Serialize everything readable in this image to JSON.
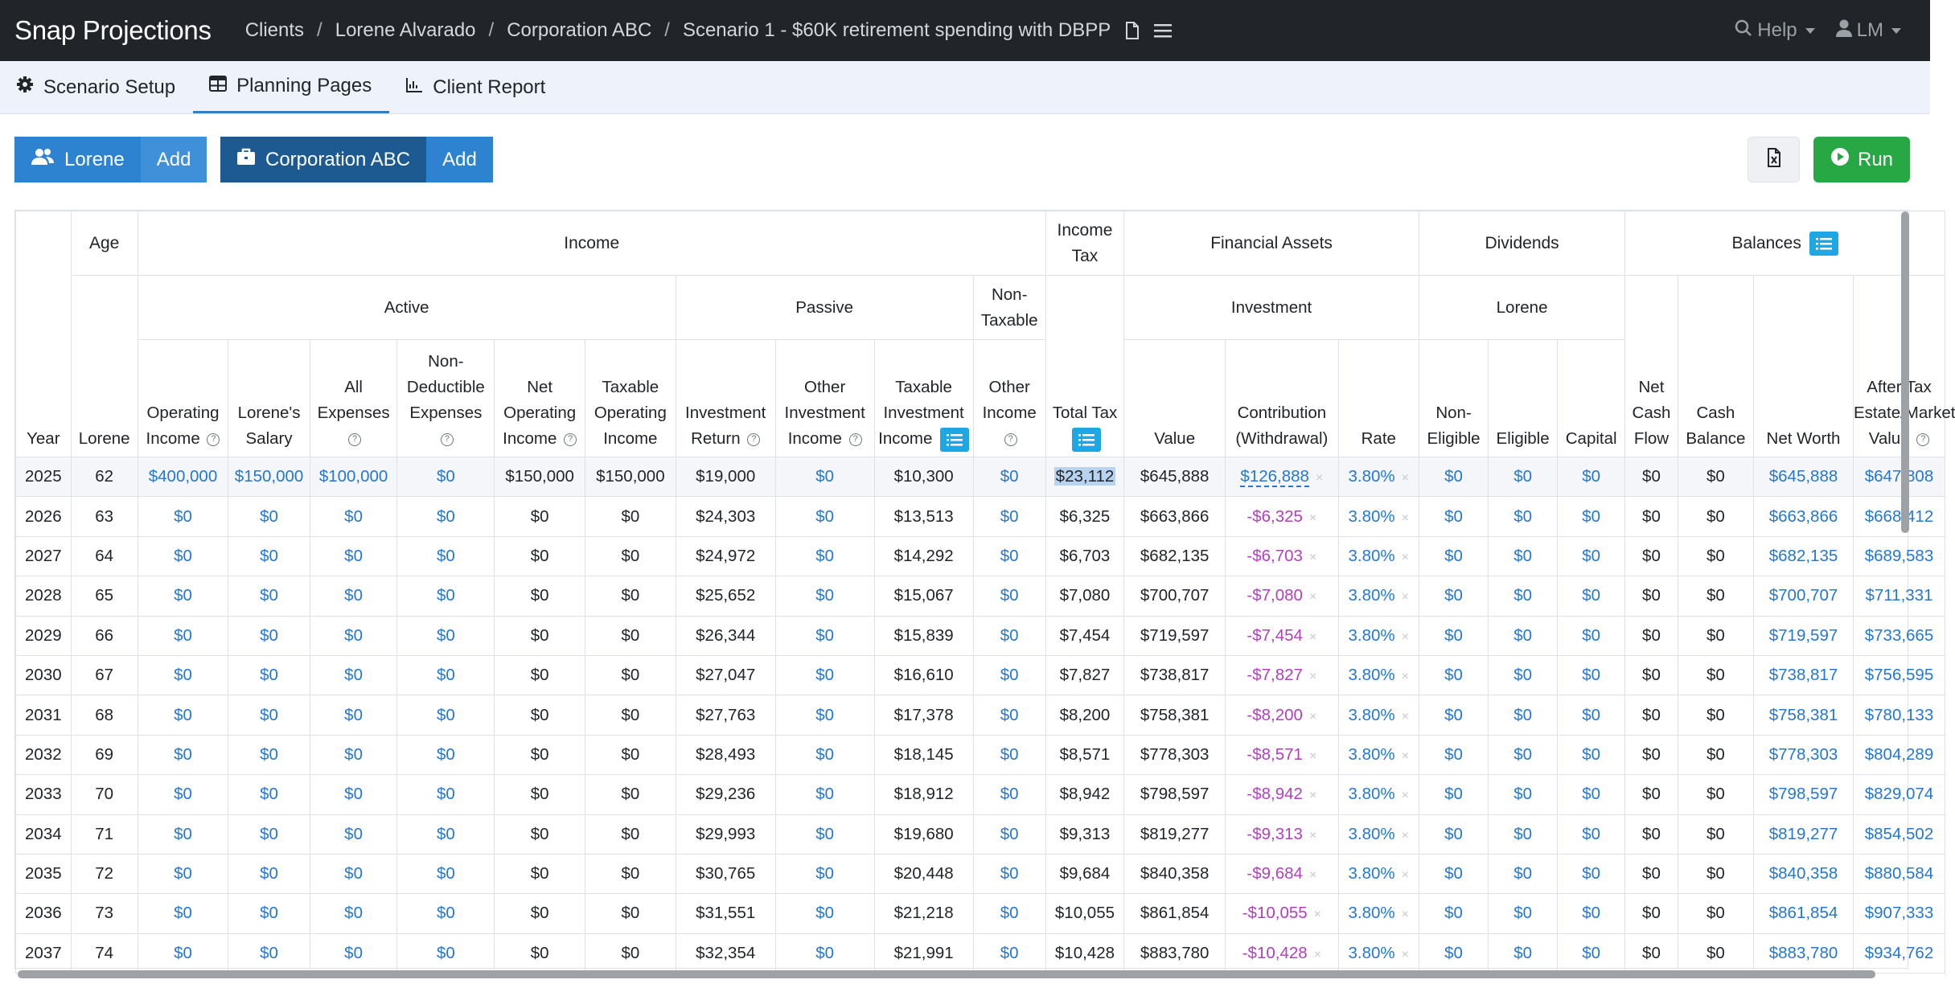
{
  "app": {
    "brand": "Snap Projections"
  },
  "breadcrumb": [
    "Clients",
    "Lorene Alvarado",
    "Corporation ABC",
    "Scenario 1 - $60K retirement spending with DBPP"
  ],
  "nav": {
    "help": "Help",
    "user": "LM"
  },
  "tabs": [
    {
      "label": "Scenario Setup",
      "icon": "gear-icon"
    },
    {
      "label": "Planning Pages",
      "icon": "table-icon"
    },
    {
      "label": "Client Report",
      "icon": "chart-icon"
    }
  ],
  "entities": {
    "person": {
      "label": "Lorene",
      "add": "Add",
      "color": "#2d83d0"
    },
    "corp": {
      "label": "Corporation ABC",
      "add": "Add",
      "color": "#1c5a91"
    }
  },
  "actions": {
    "run": "Run"
  },
  "table": {
    "groups": {
      "year": "Year",
      "age": "Age",
      "income": "Income",
      "income_tax": "Income Tax",
      "financial_assets": "Financial Assets",
      "dividends": "Dividends",
      "balances": "Balances",
      "age_sub": "Lorene",
      "active": "Active",
      "passive": "Passive",
      "non_taxable": "Non-Taxable",
      "investment": "Investment",
      "div_person": "Lorene"
    },
    "columns": [
      "Operating Income",
      "Lorene's Salary",
      "All Expenses",
      "Non-Deductible Expenses",
      "Net Operating Income",
      "Taxable Operating Income",
      "Investment Return",
      "Other Investment Income",
      "Taxable Investment Income",
      "Other Income",
      "Total Tax",
      "Value",
      "Contribution (Withdrawal)",
      "Rate",
      "Non-Eligible",
      "Eligible",
      "Capital",
      "Net Cash Flow",
      "Cash Balance",
      "Net Worth",
      "After Tax Estate/Market Value"
    ],
    "rows": [
      [
        "2025",
        "62",
        "$400,000",
        "$150,000",
        "$100,000",
        "$0",
        "$150,000",
        "$150,000",
        "$19,000",
        "$0",
        "$10,300",
        "$0",
        "$23,112",
        "$645,888",
        "$126,888",
        "3.80%",
        "$0",
        "$0",
        "$0",
        "$0",
        "$0",
        "$645,888",
        "$647,808"
      ],
      [
        "2026",
        "63",
        "$0",
        "$0",
        "$0",
        "$0",
        "$0",
        "$0",
        "$24,303",
        "$0",
        "$13,513",
        "$0",
        "$6,325",
        "$663,866",
        "-$6,325",
        "3.80%",
        "$0",
        "$0",
        "$0",
        "$0",
        "$0",
        "$663,866",
        "$668,412"
      ],
      [
        "2027",
        "64",
        "$0",
        "$0",
        "$0",
        "$0",
        "$0",
        "$0",
        "$24,972",
        "$0",
        "$14,292",
        "$0",
        "$6,703",
        "$682,135",
        "-$6,703",
        "3.80%",
        "$0",
        "$0",
        "$0",
        "$0",
        "$0",
        "$682,135",
        "$689,583"
      ],
      [
        "2028",
        "65",
        "$0",
        "$0",
        "$0",
        "$0",
        "$0",
        "$0",
        "$25,652",
        "$0",
        "$15,067",
        "$0",
        "$7,080",
        "$700,707",
        "-$7,080",
        "3.80%",
        "$0",
        "$0",
        "$0",
        "$0",
        "$0",
        "$700,707",
        "$711,331"
      ],
      [
        "2029",
        "66",
        "$0",
        "$0",
        "$0",
        "$0",
        "$0",
        "$0",
        "$26,344",
        "$0",
        "$15,839",
        "$0",
        "$7,454",
        "$719,597",
        "-$7,454",
        "3.80%",
        "$0",
        "$0",
        "$0",
        "$0",
        "$0",
        "$719,597",
        "$733,665"
      ],
      [
        "2030",
        "67",
        "$0",
        "$0",
        "$0",
        "$0",
        "$0",
        "$0",
        "$27,047",
        "$0",
        "$16,610",
        "$0",
        "$7,827",
        "$738,817",
        "-$7,827",
        "3.80%",
        "$0",
        "$0",
        "$0",
        "$0",
        "$0",
        "$738,817",
        "$756,595"
      ],
      [
        "2031",
        "68",
        "$0",
        "$0",
        "$0",
        "$0",
        "$0",
        "$0",
        "$27,763",
        "$0",
        "$17,378",
        "$0",
        "$8,200",
        "$758,381",
        "-$8,200",
        "3.80%",
        "$0",
        "$0",
        "$0",
        "$0",
        "$0",
        "$758,381",
        "$780,133"
      ],
      [
        "2032",
        "69",
        "$0",
        "$0",
        "$0",
        "$0",
        "$0",
        "$0",
        "$28,493",
        "$0",
        "$18,145",
        "$0",
        "$8,571",
        "$778,303",
        "-$8,571",
        "3.80%",
        "$0",
        "$0",
        "$0",
        "$0",
        "$0",
        "$778,303",
        "$804,289"
      ],
      [
        "2033",
        "70",
        "$0",
        "$0",
        "$0",
        "$0",
        "$0",
        "$0",
        "$29,236",
        "$0",
        "$18,912",
        "$0",
        "$8,942",
        "$798,597",
        "-$8,942",
        "3.80%",
        "$0",
        "$0",
        "$0",
        "$0",
        "$0",
        "$798,597",
        "$829,074"
      ],
      [
        "2034",
        "71",
        "$0",
        "$0",
        "$0",
        "$0",
        "$0",
        "$0",
        "$29,993",
        "$0",
        "$19,680",
        "$0",
        "$9,313",
        "$819,277",
        "-$9,313",
        "3.80%",
        "$0",
        "$0",
        "$0",
        "$0",
        "$0",
        "$819,277",
        "$854,502"
      ],
      [
        "2035",
        "72",
        "$0",
        "$0",
        "$0",
        "$0",
        "$0",
        "$0",
        "$30,765",
        "$0",
        "$20,448",
        "$0",
        "$9,684",
        "$840,358",
        "-$9,684",
        "3.80%",
        "$0",
        "$0",
        "$0",
        "$0",
        "$0",
        "$840,358",
        "$880,584"
      ],
      [
        "2036",
        "73",
        "$0",
        "$0",
        "$0",
        "$0",
        "$0",
        "$0",
        "$31,551",
        "$0",
        "$21,218",
        "$0",
        "$10,055",
        "$861,854",
        "-$10,055",
        "3.80%",
        "$0",
        "$0",
        "$0",
        "$0",
        "$0",
        "$861,854",
        "$907,333"
      ],
      [
        "2037",
        "74",
        "$0",
        "$0",
        "$0",
        "$0",
        "$0",
        "$0",
        "$32,354",
        "$0",
        "$21,991",
        "$0",
        "$10,428",
        "$883,780",
        "-$10,428",
        "3.80%",
        "$0",
        "$0",
        "$0",
        "$0",
        "$0",
        "$883,780",
        "$934,762"
      ]
    ]
  }
}
